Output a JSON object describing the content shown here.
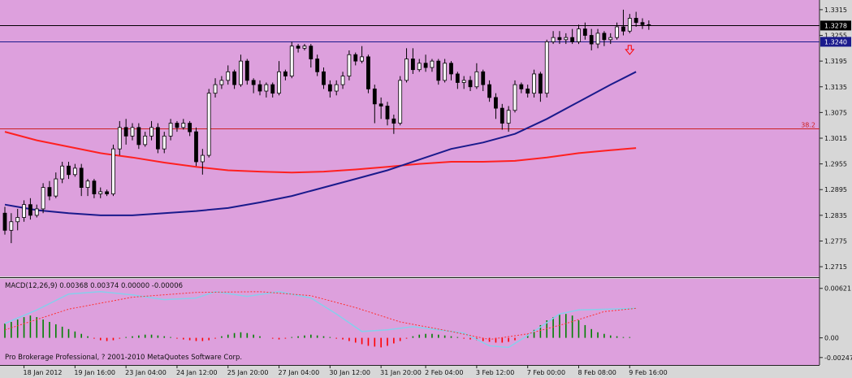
{
  "chart_data": {
    "type": "candlestick",
    "theme": {
      "background": "#dda0dd",
      "bull_color": "#ffffff",
      "bear_color": "#000000",
      "ma_fast_color": "#1a1a8c",
      "ma_slow_color": "#ff2020",
      "level_color": "#cc2222",
      "macd_bar_pos": "#008000",
      "macd_bar_neg": "#ff0000",
      "macd_signal_color": "#ff3030",
      "macd_main_color": "#87ceeb"
    },
    "price_axis": {
      "min": 1.27,
      "max": 1.333,
      "ticks": [
        "1.3315",
        "1.3255",
        "1.3195",
        "1.3135",
        "1.3075",
        "1.3015",
        "1.2955",
        "1.2895",
        "1.2835",
        "1.2775",
        "1.2715"
      ]
    },
    "price_labels": [
      {
        "text": "1.3278",
        "value": 1.3278,
        "style": "current"
      },
      {
        "text": "1.3240",
        "value": 1.324,
        "style": "level"
      }
    ],
    "horizontal_lines": [
      {
        "value": 1.3278,
        "color": "#000000"
      },
      {
        "value": 1.324,
        "color": "#1a1a8c"
      },
      {
        "value": 1.3038,
        "color": "#cc2222",
        "label": "38.2"
      }
    ],
    "arrow_marker": {
      "bar_index": 98,
      "price": 1.3222,
      "color": "#ff0000"
    },
    "time_labels": [
      {
        "text": "18 Jan 2012",
        "bar": 3
      },
      {
        "text": "19 Jan 16:00",
        "bar": 11
      },
      {
        "text": "23 Jan 04:00",
        "bar": 19
      },
      {
        "text": "24 Jan 12:00",
        "bar": 27
      },
      {
        "text": "25 Jan 20:00",
        "bar": 35
      },
      {
        "text": "27 Jan 04:00",
        "bar": 43
      },
      {
        "text": "30 Jan 12:00",
        "bar": 51
      },
      {
        "text": "31 Jan 20:00",
        "bar": 59
      },
      {
        "text": "2 Feb 04:00",
        "bar": 66
      },
      {
        "text": "3 Feb 12:00",
        "bar": 74
      },
      {
        "text": "7 Feb 00:00",
        "bar": 82
      },
      {
        "text": "8 Feb 08:00",
        "bar": 90
      },
      {
        "text": "9 Feb 16:00",
        "bar": 98
      }
    ],
    "candles": [
      [
        1.284,
        1.28,
        1.279,
        1.2855
      ],
      [
        1.28,
        1.282,
        1.277,
        1.284
      ],
      [
        1.282,
        1.283,
        1.28,
        1.285
      ],
      [
        1.283,
        1.286,
        1.282,
        1.287
      ],
      [
        1.286,
        1.2835,
        1.2825,
        1.2875
      ],
      [
        1.2835,
        1.285,
        1.283,
        1.286
      ],
      [
        1.285,
        1.29,
        1.284,
        1.291
      ],
      [
        1.29,
        1.288,
        1.287,
        1.2915
      ],
      [
        1.288,
        1.292,
        1.2875,
        1.2935
      ],
      [
        1.292,
        1.295,
        1.291,
        1.296
      ],
      [
        1.295,
        1.293,
        1.292,
        1.296
      ],
      [
        1.293,
        1.2945,
        1.2925,
        1.2955
      ],
      [
        1.2945,
        1.29,
        1.288,
        1.2955
      ],
      [
        1.29,
        1.2915,
        1.288,
        1.292
      ],
      [
        1.2915,
        1.2885,
        1.2875,
        1.292
      ],
      [
        1.2885,
        1.289,
        1.2875,
        1.29
      ],
      [
        1.289,
        1.2885,
        1.288,
        1.2895
      ],
      [
        1.2885,
        1.299,
        1.288,
        1.3
      ],
      [
        1.299,
        1.304,
        1.2975,
        1.3055
      ],
      [
        1.304,
        1.302,
        1.3,
        1.306
      ],
      [
        1.302,
        1.304,
        1.301,
        1.305
      ],
      [
        1.304,
        1.3,
        1.299,
        1.305
      ],
      [
        1.3,
        1.302,
        1.2995,
        1.303
      ],
      [
        1.302,
        1.304,
        1.301,
        1.3055
      ],
      [
        1.304,
        1.299,
        1.298,
        1.305
      ],
      [
        1.299,
        1.302,
        1.298,
        1.303
      ],
      [
        1.302,
        1.305,
        1.301,
        1.306
      ],
      [
        1.305,
        1.304,
        1.303,
        1.3055
      ],
      [
        1.304,
        1.305,
        1.3035,
        1.306
      ],
      [
        1.305,
        1.303,
        1.302,
        1.3055
      ],
      [
        1.303,
        1.296,
        1.295,
        1.304
      ],
      [
        1.296,
        1.2975,
        1.293,
        1.299
      ],
      [
        1.2975,
        1.312,
        1.297,
        1.313
      ],
      [
        1.312,
        1.314,
        1.311,
        1.3155
      ],
      [
        1.314,
        1.315,
        1.313,
        1.316
      ],
      [
        1.315,
        1.317,
        1.314,
        1.3185
      ],
      [
        1.317,
        1.314,
        1.313,
        1.3175
      ],
      [
        1.314,
        1.3195,
        1.3135,
        1.321
      ],
      [
        1.3195,
        1.315,
        1.314,
        1.32
      ],
      [
        1.315,
        1.314,
        1.312,
        1.3155
      ],
      [
        1.314,
        1.3125,
        1.3115,
        1.315
      ],
      [
        1.3125,
        1.314,
        1.311,
        1.3145
      ],
      [
        1.314,
        1.312,
        1.311,
        1.3145
      ],
      [
        1.312,
        1.317,
        1.3115,
        1.3195
      ],
      [
        1.317,
        1.316,
        1.315,
        1.3175
      ],
      [
        1.316,
        1.323,
        1.3155,
        1.324
      ],
      [
        1.323,
        1.3225,
        1.3215,
        1.3235
      ],
      [
        1.3225,
        1.323,
        1.322,
        1.3235
      ],
      [
        1.323,
        1.32,
        1.318,
        1.3235
      ],
      [
        1.32,
        1.317,
        1.316,
        1.321
      ],
      [
        1.317,
        1.314,
        1.313,
        1.318
      ],
      [
        1.314,
        1.3125,
        1.311,
        1.315
      ],
      [
        1.3125,
        1.314,
        1.3115,
        1.315
      ],
      [
        1.314,
        1.316,
        1.313,
        1.317
      ],
      [
        1.316,
        1.321,
        1.315,
        1.322
      ],
      [
        1.321,
        1.3195,
        1.3185,
        1.3215
      ],
      [
        1.3195,
        1.3205,
        1.319,
        1.323
      ],
      [
        1.3205,
        1.313,
        1.312,
        1.321
      ],
      [
        1.313,
        1.3095,
        1.305,
        1.314
      ],
      [
        1.3095,
        1.309,
        1.306,
        1.311
      ],
      [
        1.309,
        1.306,
        1.3045,
        1.31
      ],
      [
        1.306,
        1.305,
        1.3025,
        1.307
      ],
      [
        1.305,
        1.315,
        1.3045,
        1.316
      ],
      [
        1.315,
        1.32,
        1.3145,
        1.3225
      ],
      [
        1.32,
        1.3175,
        1.3165,
        1.3225
      ],
      [
        1.3175,
        1.319,
        1.317,
        1.32
      ],
      [
        1.319,
        1.318,
        1.317,
        1.321
      ],
      [
        1.318,
        1.3195,
        1.317,
        1.32
      ],
      [
        1.3195,
        1.315,
        1.314,
        1.32
      ],
      [
        1.315,
        1.319,
        1.3145,
        1.32
      ],
      [
        1.319,
        1.3165,
        1.315,
        1.3195
      ],
      [
        1.3165,
        1.3145,
        1.313,
        1.317
      ],
      [
        1.3145,
        1.315,
        1.313,
        1.316
      ],
      [
        1.315,
        1.3135,
        1.3125,
        1.316
      ],
      [
        1.3135,
        1.317,
        1.313,
        1.319
      ],
      [
        1.317,
        1.314,
        1.3125,
        1.3175
      ],
      [
        1.314,
        1.311,
        1.31,
        1.315
      ],
      [
        1.311,
        1.3085,
        1.306,
        1.312
      ],
      [
        1.3085,
        1.305,
        1.3035,
        1.3095
      ],
      [
        1.305,
        1.308,
        1.303,
        1.309
      ],
      [
        1.308,
        1.314,
        1.3075,
        1.315
      ],
      [
        1.314,
        1.313,
        1.312,
        1.3145
      ],
      [
        1.313,
        1.312,
        1.311,
        1.314
      ],
      [
        1.312,
        1.3165,
        1.311,
        1.3175
      ],
      [
        1.3165,
        1.312,
        1.31,
        1.317
      ],
      [
        1.312,
        1.324,
        1.311,
        1.3245
      ],
      [
        1.324,
        1.325,
        1.3235,
        1.3265
      ],
      [
        1.325,
        1.3245,
        1.3235,
        1.3265
      ],
      [
        1.3245,
        1.325,
        1.3235,
        1.326
      ],
      [
        1.325,
        1.324,
        1.3235,
        1.327
      ],
      [
        1.324,
        1.327,
        1.3235,
        1.328
      ],
      [
        1.327,
        1.3255,
        1.3245,
        1.3285
      ],
      [
        1.3255,
        1.3235,
        1.322,
        1.327
      ],
      [
        1.3235,
        1.326,
        1.3225,
        1.327
      ],
      [
        1.326,
        1.3245,
        1.323,
        1.3265
      ],
      [
        1.3245,
        1.325,
        1.3235,
        1.326
      ],
      [
        1.325,
        1.3275,
        1.3245,
        1.3285
      ],
      [
        1.3275,
        1.3265,
        1.3255,
        1.3315
      ],
      [
        1.3265,
        1.3295,
        1.326,
        1.3305
      ],
      [
        1.3295,
        1.3285,
        1.3275,
        1.331
      ],
      [
        1.3285,
        1.328,
        1.327,
        1.3295
      ],
      [
        1.328,
        1.3278,
        1.3268,
        1.329
      ]
    ],
    "ma_fast": [
      [
        0,
        1.286
      ],
      [
        5,
        1.2847
      ],
      [
        10,
        1.284
      ],
      [
        15,
        1.2835
      ],
      [
        20,
        1.2835
      ],
      [
        25,
        1.284
      ],
      [
        30,
        1.2845
      ],
      [
        35,
        1.2852
      ],
      [
        40,
        1.2865
      ],
      [
        45,
        1.288
      ],
      [
        50,
        1.29
      ],
      [
        55,
        1.292
      ],
      [
        60,
        1.294
      ],
      [
        65,
        1.2965
      ],
      [
        70,
        1.299
      ],
      [
        75,
        1.3005
      ],
      [
        80,
        1.3025
      ],
      [
        85,
        1.306
      ],
      [
        90,
        1.31
      ],
      [
        95,
        1.314
      ],
      [
        99,
        1.317
      ]
    ],
    "ma_slow": [
      [
        0,
        1.303
      ],
      [
        5,
        1.301
      ],
      [
        10,
        1.2995
      ],
      [
        15,
        1.298
      ],
      [
        20,
        1.297
      ],
      [
        25,
        1.2958
      ],
      [
        30,
        1.2948
      ],
      [
        35,
        1.294
      ],
      [
        40,
        1.2937
      ],
      [
        45,
        1.2935
      ],
      [
        50,
        1.2937
      ],
      [
        55,
        1.2942
      ],
      [
        60,
        1.2948
      ],
      [
        65,
        1.2955
      ],
      [
        70,
        1.296
      ],
      [
        75,
        1.296
      ],
      [
        80,
        1.2962
      ],
      [
        85,
        1.297
      ],
      [
        90,
        1.298
      ],
      [
        95,
        1.2987
      ],
      [
        99,
        1.2992
      ]
    ],
    "macd": {
      "label": "MACD(12,26,9) 0.00368 0.00374 0.00000 -0.00006",
      "axis_ticks": [
        {
          "text": "0.00621",
          "value": 0.00621
        },
        {
          "text": "0.00",
          "value": 0.0
        },
        {
          "text": "-0.00247",
          "value": -0.00247
        }
      ],
      "range": [
        -0.003,
        0.007
      ],
      "histogram": [
        0.0018,
        0.002,
        0.0023,
        0.0026,
        0.0028,
        0.0026,
        0.0023,
        0.002,
        0.0017,
        0.0014,
        0.0011,
        0.0008,
        0.0005,
        0.0002,
        -0.0001,
        -0.0003,
        -0.0004,
        -0.0003,
        -0.0001,
        0.0001,
        0.0002,
        0.0003,
        0.0004,
        0.0004,
        0.0003,
        0.0002,
        0.0001,
        -0.0001,
        -0.0002,
        -0.0003,
        -0.0004,
        -0.0004,
        -0.0003,
        -0.0001,
        0.0002,
        0.0004,
        0.0006,
        0.0007,
        0.0006,
        0.0004,
        0.0002,
        0.0,
        -0.0001,
        -0.0002,
        -0.0001,
        0.0001,
        0.0002,
        0.0003,
        0.0004,
        0.0003,
        0.0002,
        0.0001,
        -0.0001,
        -0.0002,
        -0.0004,
        -0.0006,
        -0.0008,
        -0.001,
        -0.0011,
        -0.0012,
        -0.001,
        -0.0007,
        -0.0004,
        -0.0001,
        0.0002,
        0.0004,
        0.0005,
        0.0005,
        0.0004,
        0.0003,
        0.0002,
        0.0001,
        -0.0001,
        -0.0002,
        -0.0003,
        -0.0004,
        -0.0005,
        -0.0006,
        -0.0006,
        -0.0005,
        -0.0003,
        0.0,
        0.0004,
        0.001,
        0.0016,
        0.0022,
        0.0026,
        0.0029,
        0.003,
        0.0028,
        0.0022,
        0.0016,
        0.0011,
        0.0007,
        0.0005,
        0.0003,
        0.0002,
        0.0001,
        0.0001,
        0.0
      ],
      "signal": [
        [
          0,
          0.001
        ],
        [
          10,
          0.0036
        ],
        [
          20,
          0.0051
        ],
        [
          30,
          0.0057
        ],
        [
          40,
          0.0058
        ],
        [
          48,
          0.0053
        ],
        [
          55,
          0.0038
        ],
        [
          62,
          0.002
        ],
        [
          70,
          0.0008
        ],
        [
          76,
          -0.0002
        ],
        [
          82,
          0.0005
        ],
        [
          88,
          0.0018
        ],
        [
          94,
          0.0033
        ],
        [
          99,
          0.0037
        ]
      ],
      "main": [
        [
          0,
          0.0018
        ],
        [
          5,
          0.0035
        ],
        [
          10,
          0.0055
        ],
        [
          15,
          0.0058
        ],
        [
          20,
          0.0054
        ],
        [
          25,
          0.0048
        ],
        [
          30,
          0.005
        ],
        [
          33,
          0.0058
        ],
        [
          38,
          0.0052
        ],
        [
          43,
          0.0058
        ],
        [
          48,
          0.005
        ],
        [
          52,
          0.003
        ],
        [
          56,
          0.0008
        ],
        [
          60,
          0.001
        ],
        [
          64,
          0.0014
        ],
        [
          68,
          0.001
        ],
        [
          72,
          0.0006
        ],
        [
          76,
          -0.001
        ],
        [
          79,
          -0.0012
        ],
        [
          83,
          0.0008
        ],
        [
          87,
          0.003
        ],
        [
          90,
          0.0035
        ],
        [
          95,
          0.0036
        ],
        [
          99,
          0.0037
        ]
      ]
    },
    "footer": "Pro Brokerage Professional, ? 2001-2010 MetaQuotes Software Corp."
  }
}
